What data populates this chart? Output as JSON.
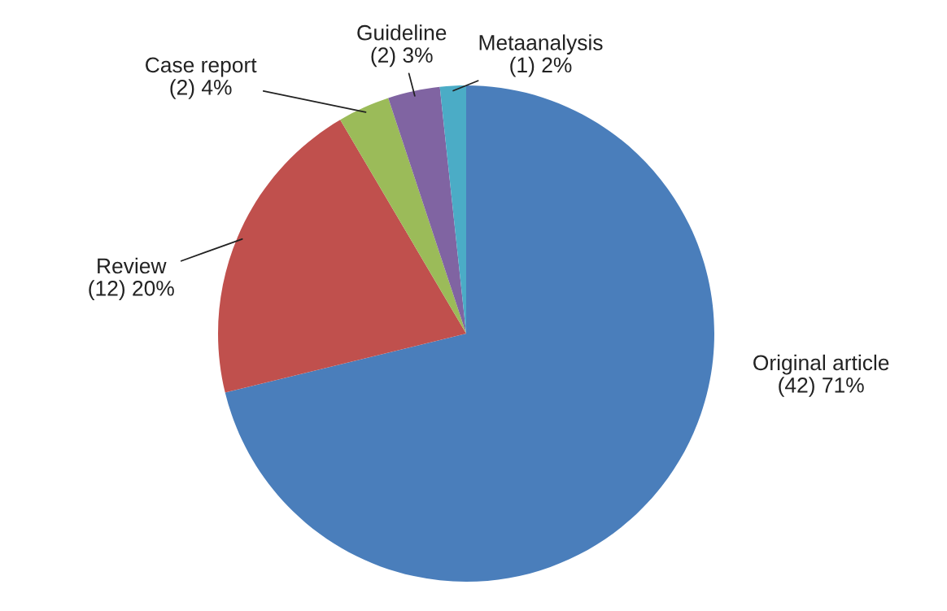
{
  "chart_data": {
    "type": "pie",
    "categories": [
      "Original article",
      "Review",
      "Case report",
      "Guideline",
      "Metaanalysis"
    ],
    "values": [
      42,
      12,
      2,
      2,
      1
    ],
    "value_labels": [
      "(42) 71%",
      "(12) 20%",
      "(2) 4%",
      "(2) 3%",
      "(1) 2%"
    ],
    "colors": [
      "#4a7ebb",
      "#c0504d",
      "#9bbb59",
      "#8064a2",
      "#4bacc6"
    ]
  }
}
